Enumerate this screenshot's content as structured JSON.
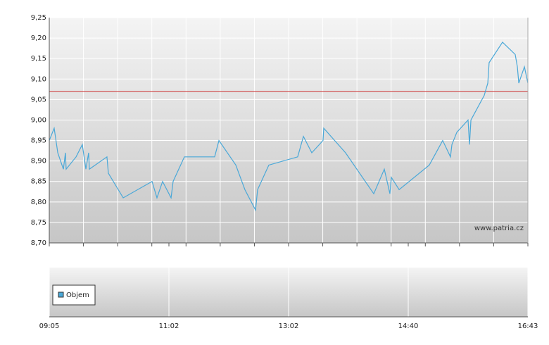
{
  "chart_data": {
    "type": "line",
    "watermark": "www.patria.cz",
    "x": [
      0,
      0.041,
      0.071,
      0.118,
      0.135,
      0.141,
      0.224,
      0.276,
      0.306,
      0.329,
      0.335,
      0.482,
      0.494,
      0.618,
      0.859,
      0.9,
      0.947,
      1.018,
      1.035,
      1.129,
      1.382,
      1.418,
      1.559,
      1.635,
      1.724,
      1.741,
      1.835,
      2.076,
      2.124,
      2.194,
      2.288,
      2.294,
      2.476,
      2.712,
      2.8,
      2.847,
      2.859,
      2.924,
      3.176,
      3.288,
      3.353,
      3.365,
      3.406,
      3.5,
      3.512,
      3.524,
      3.635,
      3.665,
      3.676,
      3.788,
      3.894,
      3.912,
      3.924,
      3.971,
      4
    ],
    "series": [
      {
        "name": "Objem",
        "color": "#4aa8d8",
        "values": [
          8.95,
          8.98,
          8.92,
          8.88,
          8.92,
          8.88,
          8.91,
          8.94,
          8.88,
          8.92,
          8.88,
          8.91,
          8.87,
          8.81,
          8.85,
          8.81,
          8.85,
          8.81,
          8.85,
          8.91,
          8.91,
          8.95,
          8.89,
          8.83,
          8.78,
          8.83,
          8.89,
          8.91,
          8.96,
          8.92,
          8.95,
          8.98,
          8.92,
          8.82,
          8.88,
          8.82,
          8.86,
          8.83,
          8.89,
          8.95,
          8.91,
          8.94,
          8.97,
          9.0,
          8.94,
          9.0,
          9.06,
          9.09,
          9.14,
          9.19,
          9.16,
          9.13,
          9.09,
          9.13,
          9.09
        ]
      }
    ],
    "reference_line": {
      "value": 9.07,
      "color": "#cc3333"
    },
    "xlim": [
      0,
      4
    ],
    "xticks": [
      {
        "value": 0,
        "label": "09:05"
      },
      {
        "value": 1,
        "label": "11:02"
      },
      {
        "value": 2,
        "label": "13:02"
      },
      {
        "value": 3,
        "label": "14:40"
      },
      {
        "value": 4,
        "label": "16:43"
      }
    ],
    "ylim": [
      8.7,
      9.25
    ],
    "yticks": [
      {
        "value": 8.7,
        "label": "8,70"
      },
      {
        "value": 8.75,
        "label": "8,75"
      },
      {
        "value": 8.8,
        "label": "8,80"
      },
      {
        "value": 8.85,
        "label": "8,85"
      },
      {
        "value": 8.9,
        "label": "8,90"
      },
      {
        "value": 8.95,
        "label": "8,95"
      },
      {
        "value": 9.0,
        "label": "9,00"
      },
      {
        "value": 9.05,
        "label": "9,05"
      },
      {
        "value": 9.1,
        "label": "9,10"
      },
      {
        "value": 9.15,
        "label": "9,15"
      },
      {
        "value": 9.2,
        "label": "9,20"
      },
      {
        "value": 9.25,
        "label": "9,25"
      }
    ],
    "grid": true
  }
}
